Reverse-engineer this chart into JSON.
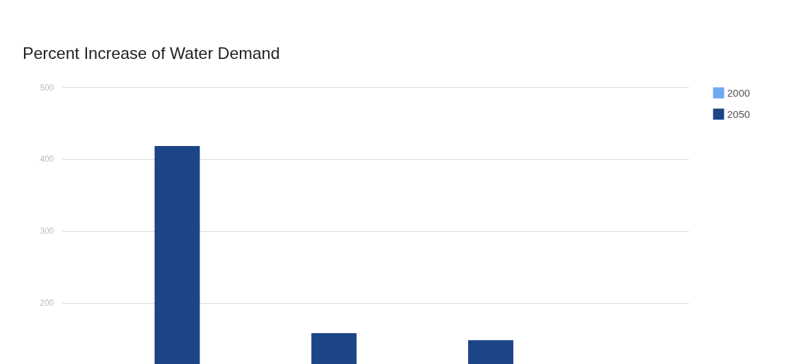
{
  "chart_data": {
    "type": "bar",
    "title": "Percent Increase of Water Demand",
    "categories": [
      null,
      null,
      null,
      null
    ],
    "series": [
      {
        "name": "2000",
        "color": "#6fa8f0",
        "values": [
          null,
          null,
          null,
          null
        ]
      },
      {
        "name": "2050",
        "color": "#1c4587",
        "values": [
          418,
          158,
          148,
          null
        ]
      }
    ],
    "ylim": [
      115,
      500
    ],
    "yticks": [
      200,
      300,
      400,
      500
    ],
    "grid": "y",
    "legend": "top right",
    "tick_labels": "y"
  }
}
